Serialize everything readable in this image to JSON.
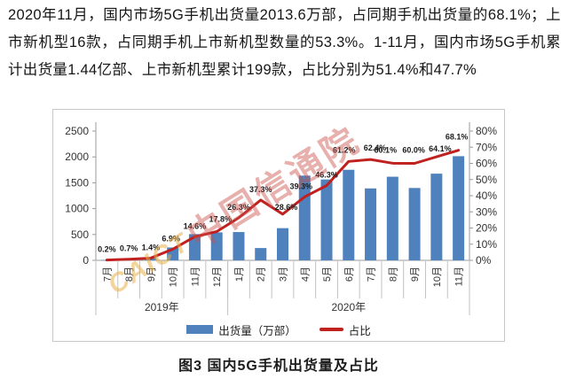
{
  "intro": {
    "text": "2020年11月，国内市场5G手机出货量2013.6万部，占同期手机出货量的68.1%；上市新机型16款，占同期手机上市新机型数量的53.3%。1-11月，国内市场5G手机累计出货量1.44亿部、上市新机型累计199款，占比分别为51.4%和47.7%"
  },
  "caption": {
    "text": "图3  国内5G手机出货量及占比"
  },
  "watermark": {
    "latin": "CAICT",
    "cjk": "中国信通院"
  },
  "chart_data": {
    "type": "bar+line combo",
    "title": "国内5G手机出货量及占比",
    "grid": "off",
    "legend_position": "bottom",
    "categories": [
      "7月",
      "8月",
      "9月",
      "10月",
      "11月",
      "12月",
      "1月",
      "2月",
      "3月",
      "4月",
      "5月",
      "6月",
      "7月",
      "8月",
      "9月",
      "10月",
      "11月"
    ],
    "year_groups": [
      {
        "label": "2019年",
        "span": 6
      },
      {
        "label": "2020年",
        "span": 11
      }
    ],
    "series": [
      {
        "name": "出货量（万部）",
        "type": "bar",
        "axis": "left",
        "color": "#4f81bd",
        "values": [
          7,
          22,
          50,
          249,
          507,
          541,
          547,
          238,
          622,
          1638,
          1564,
          1751,
          1391,
          1617,
          1399,
          1676,
          2013.6
        ]
      },
      {
        "name": "占比",
        "type": "line",
        "axis": "right",
        "color": "#c0201e",
        "values": [
          0.2,
          0.7,
          1.4,
          6.9,
          14.6,
          17.8,
          26.3,
          37.3,
          28.6,
          39.3,
          46.3,
          61.2,
          62.4,
          60.1,
          60.0,
          64.1,
          68.1
        ],
        "point_labels": [
          "0.2%",
          "0.7%",
          "1.4%",
          "6.9%",
          "14.6%",
          "17.8%",
          "26.3%",
          "37.3%",
          "28.6%",
          "39.3%",
          "46.3%",
          "61.2%",
          "62.4%",
          "60.1%",
          "60.0%",
          "64.1%",
          "68.1%"
        ]
      }
    ],
    "left_axis": {
      "min": 0,
      "max": 2500,
      "tick_step": 500,
      "tick_labels": [
        "0",
        "500",
        "1000",
        "1500",
        "2000",
        "2500"
      ]
    },
    "right_axis": {
      "min": 0,
      "max": 80,
      "tick_step": 10,
      "tick_labels": [
        "0%",
        "10%",
        "20%",
        "30%",
        "40%",
        "50%",
        "60%",
        "70%",
        "80%"
      ]
    },
    "legend": [
      {
        "label": "出货量（万部）",
        "swatch": "bar"
      },
      {
        "label": "占比",
        "swatch": "line"
      }
    ]
  }
}
